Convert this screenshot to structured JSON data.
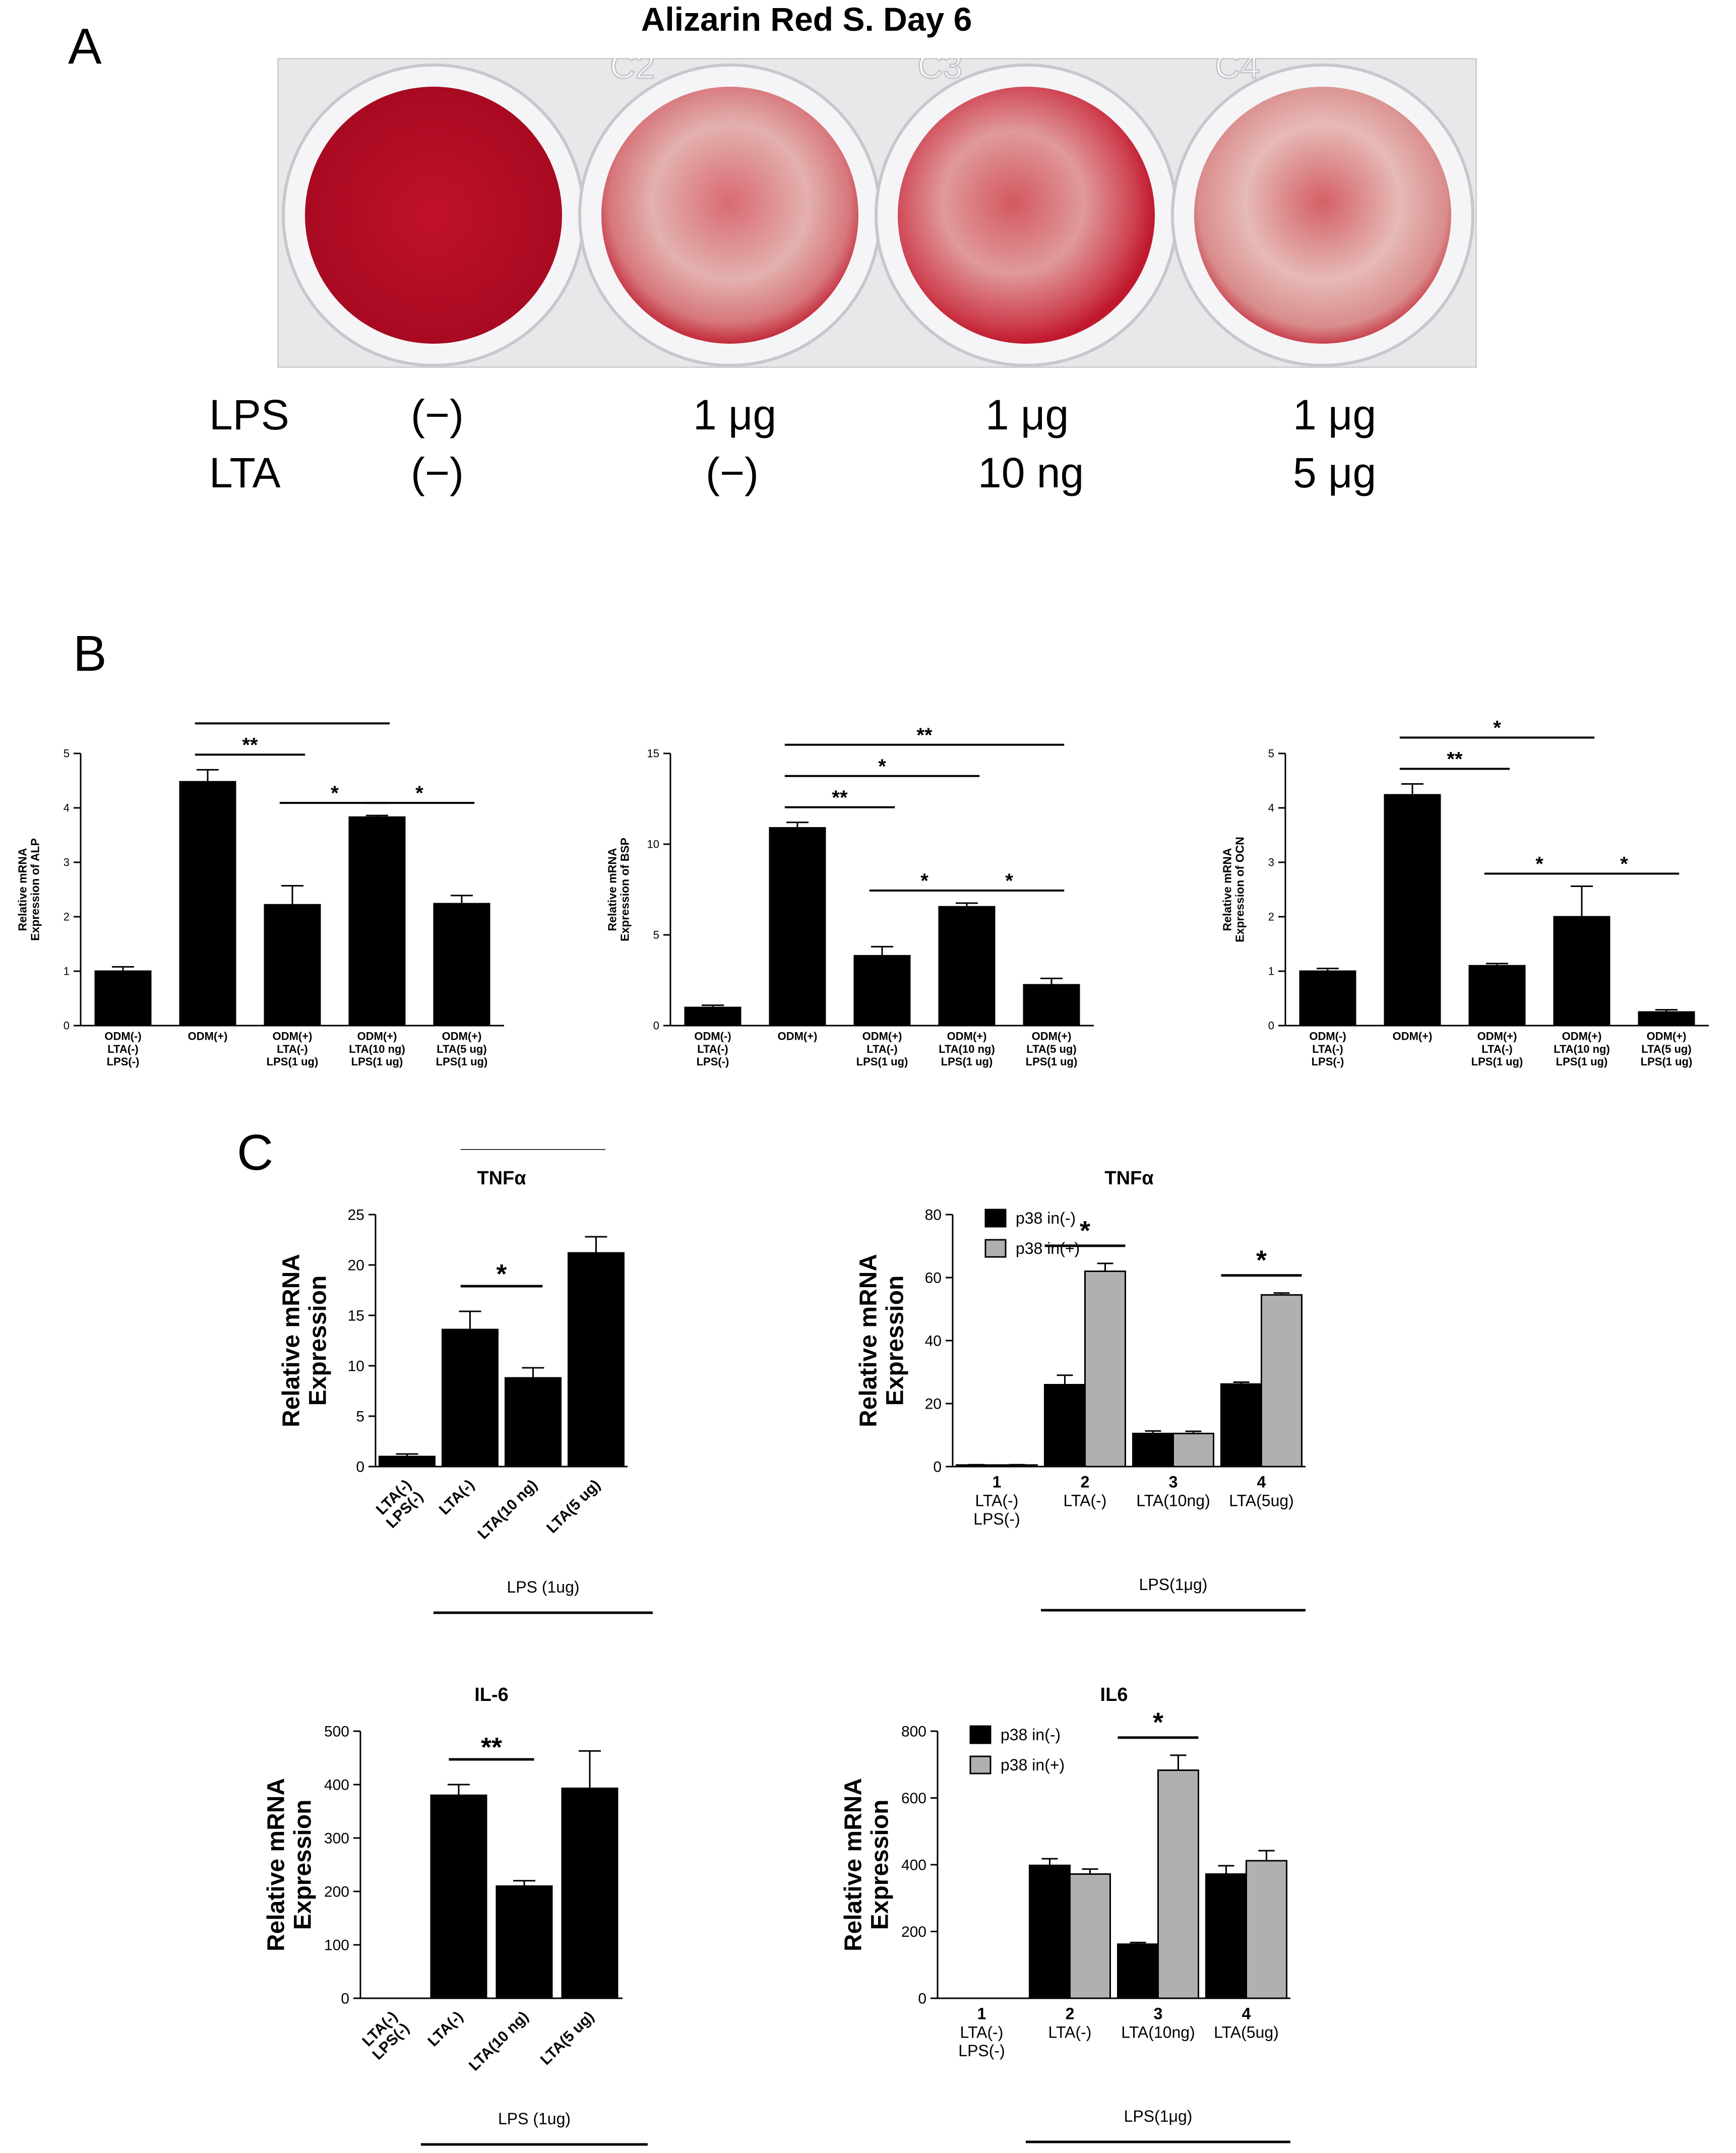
{
  "panels": {
    "A": "A",
    "B": "B",
    "C": "C"
  },
  "plate": {
    "title": "Alizarin Red S. Day 6",
    "well_labels": [
      "C2",
      "C3",
      "C4"
    ],
    "well_stain_intensity": [
      1.0,
      0.35,
      0.55,
      0.4
    ],
    "stain_color": "#c4112b",
    "row_labels": [
      "LPS",
      "LTA"
    ],
    "lps_values": [
      "(−)",
      "1 μg",
      "1 μg",
      "1 μg"
    ],
    "lta_values": [
      "(−)",
      "(−)",
      "10 ng",
      "5 μg"
    ]
  },
  "chart_data": [
    {
      "id": "B-ALP",
      "type": "bar",
      "ylabel_lines": [
        "Relative mRNA",
        "Expression of ALP"
      ],
      "ylim": [
        0,
        5
      ],
      "yticks": [
        0,
        1,
        2,
        3,
        4,
        5
      ],
      "categories": [
        [
          "ODM(-)",
          "LTA(-)",
          "LPS(-)"
        ],
        [
          "ODM(+)"
        ],
        [
          "ODM(+)",
          "LTA(-)",
          "LPS(1 ug)"
        ],
        [
          "ODM(+)",
          "LTA(10 ng)",
          "LPS(1 ug)"
        ],
        [
          "ODM(+)",
          "LTA(5 ug)",
          "LPS(1 ug)"
        ]
      ],
      "series": [
        {
          "values": [
            1.0,
            4.48,
            2.22,
            3.83,
            2.24
          ],
          "errors": [
            0.08,
            0.22,
            0.35,
            0.03,
            0.15
          ],
          "color": "#000000"
        }
      ],
      "significance": [
        {
          "from": 1,
          "to": 2,
          "label": "**"
        },
        {
          "from": 1,
          "to": 3,
          "label": "*"
        },
        {
          "from": 1,
          "to": 4,
          "label": "**"
        },
        {
          "from": 2,
          "to": 3,
          "label": "*"
        },
        {
          "from": 3,
          "to": 4,
          "label": "*"
        }
      ]
    },
    {
      "id": "B-BSP",
      "type": "bar",
      "ylabel_lines": [
        "Relative mRNA",
        "Expression of BSP"
      ],
      "ylim": [
        0,
        15
      ],
      "yticks": [
        0,
        5,
        10,
        15
      ],
      "categories": [
        [
          "ODM(-)",
          "LTA(-)",
          "LPS(-)"
        ],
        [
          "ODM(+)"
        ],
        [
          "ODM(+)",
          "LTA(-)",
          "LPS(1 ug)"
        ],
        [
          "ODM(+)",
          "LTA(10 ng)",
          "LPS(1 ug)"
        ],
        [
          "ODM(+)",
          "LTA(5 ug)",
          "LPS(1 ug)"
        ]
      ],
      "series": [
        {
          "values": [
            1.0,
            10.9,
            3.85,
            6.55,
            2.25
          ],
          "errors": [
            0.12,
            0.3,
            0.5,
            0.2,
            0.35
          ],
          "color": "#000000"
        }
      ],
      "significance": [
        {
          "from": 1,
          "to": 2,
          "label": "**"
        },
        {
          "from": 1,
          "to": 3,
          "label": "*"
        },
        {
          "from": 1,
          "to": 4,
          "label": "**"
        },
        {
          "from": 2,
          "to": 3,
          "label": "*"
        },
        {
          "from": 3,
          "to": 4,
          "label": "*"
        }
      ]
    },
    {
      "id": "B-OCN",
      "type": "bar",
      "ylabel_lines": [
        "Relative mRNA",
        "Expression of OCN"
      ],
      "ylim": [
        0,
        5
      ],
      "yticks": [
        0,
        1,
        2,
        3,
        4,
        5
      ],
      "categories": [
        [
          "ODM(-)",
          "LTA(-)",
          "LPS(-)"
        ],
        [
          "ODM(+)"
        ],
        [
          "ODM(+)",
          "LTA(-)",
          "LPS(1 ug)"
        ],
        [
          "ODM(+)",
          "LTA(10 ng)",
          "LPS(1 ug)"
        ],
        [
          "ODM(+)",
          "LTA(5 ug)",
          "LPS(1 ug)"
        ]
      ],
      "series": [
        {
          "values": [
            1.0,
            4.24,
            1.1,
            2.0,
            0.25
          ],
          "errors": [
            0.05,
            0.2,
            0.04,
            0.56,
            0.04
          ],
          "color": "#000000"
        }
      ],
      "significance": [
        {
          "from": 1,
          "to": 2,
          "label": "**"
        },
        {
          "from": 1,
          "to": 3,
          "label": "*"
        },
        {
          "from": 1,
          "to": 4,
          "label": "**"
        },
        {
          "from": 2,
          "to": 3,
          "label": "*"
        },
        {
          "from": 3,
          "to": 4,
          "label": "*"
        }
      ]
    },
    {
      "id": "C-TNF",
      "type": "bar",
      "title": "TNFα",
      "ylabel_lines": [
        "Relative mRNA",
        "Expression"
      ],
      "ylim": [
        0,
        25
      ],
      "yticks": [
        0,
        5,
        10,
        15,
        20,
        25
      ],
      "categories": [
        [
          "LTA(-)",
          "LPS(-)"
        ],
        [
          "LTA(-)"
        ],
        [
          "LTA(10 ng)"
        ],
        [
          "LTA(5 ug)"
        ]
      ],
      "rotated_labels": true,
      "group_label": "LPS (1ug)",
      "series": [
        {
          "values": [
            1.0,
            13.6,
            8.8,
            21.2
          ],
          "errors": [
            0.25,
            1.8,
            1.0,
            1.6
          ],
          "color": "#000000"
        }
      ],
      "significance": [
        {
          "from": 1,
          "to": 2,
          "label": "*"
        },
        {
          "from": 1,
          "to": 3,
          "label": "**"
        }
      ]
    },
    {
      "id": "C-TNF-p38",
      "type": "bar",
      "title": "TNFα",
      "ylabel_lines": [
        "Relative mRNA",
        "Expression"
      ],
      "ylim": [
        0,
        80
      ],
      "yticks": [
        0,
        20,
        40,
        60,
        80
      ],
      "categories": [
        [
          "1",
          "LTA(-)",
          "LPS(-)"
        ],
        [
          "2",
          "LTA(-)"
        ],
        [
          "3",
          "LTA(10ng)"
        ],
        [
          "4",
          "LTA(5ug)"
        ]
      ],
      "group_label": "LPS(1μg)",
      "legend": [
        "p38 in(-)",
        "p38 in(+)"
      ],
      "series": [
        {
          "name": "p38 in(-)",
          "values": [
            0.5,
            26,
            10.5,
            26.2
          ],
          "errors": [
            0.1,
            3,
            0.8,
            0.6
          ],
          "color": "#000000"
        },
        {
          "name": "p38 in(+)",
          "values": [
            0.5,
            62,
            10.5,
            54.5
          ],
          "errors": [
            0.1,
            2.5,
            0.7,
            0.6
          ],
          "color": "#b0b0b0"
        }
      ],
      "significance": [
        {
          "at": 1,
          "label": "*"
        },
        {
          "at": 3,
          "label": "*"
        }
      ]
    },
    {
      "id": "C-IL6",
      "type": "bar",
      "title": "IL-6",
      "ylabel_lines": [
        "Relative mRNA",
        "Expression"
      ],
      "ylim": [
        0,
        500
      ],
      "yticks": [
        0,
        100,
        200,
        300,
        400,
        500
      ],
      "categories": [
        [
          "LTA(-)",
          "LPS(-)"
        ],
        [
          "LTA(-)"
        ],
        [
          "LTA(10 ng)"
        ],
        [
          "LTA(5 ug)"
        ]
      ],
      "rotated_labels": true,
      "group_label": "LPS (1ug)",
      "series": [
        {
          "values": [
            0,
            380,
            210,
            393
          ],
          "errors": [
            0,
            20,
            10,
            70
          ],
          "color": "#000000"
        }
      ],
      "significance": [
        {
          "from": 1,
          "to": 2,
          "label": "**"
        }
      ]
    },
    {
      "id": "C-IL6-p38",
      "type": "bar",
      "title": "IL6",
      "ylabel_lines": [
        "Relative mRNA",
        "Expression"
      ],
      "ylim": [
        0,
        800
      ],
      "yticks": [
        0,
        200,
        400,
        600,
        800
      ],
      "categories": [
        [
          "1",
          "LTA(-)",
          "LPS(-)"
        ],
        [
          "2",
          "LTA(-)"
        ],
        [
          "3",
          "LTA(10ng)"
        ],
        [
          "4",
          "LTA(5ug)"
        ]
      ],
      "group_label": "LPS(1μg)",
      "legend": [
        "p38 in(-)",
        "p38 in(+)"
      ],
      "series": [
        {
          "name": "p38 in(-)",
          "values": [
            0,
            398,
            162,
            372
          ],
          "errors": [
            0,
            20,
            5,
            25
          ],
          "color": "#000000"
        },
        {
          "name": "p38 in(+)",
          "values": [
            0,
            372,
            683,
            412
          ],
          "errors": [
            0,
            15,
            45,
            30
          ],
          "color": "#b0b0b0"
        }
      ],
      "significance": [
        {
          "at": 2,
          "label": "*"
        }
      ]
    }
  ]
}
